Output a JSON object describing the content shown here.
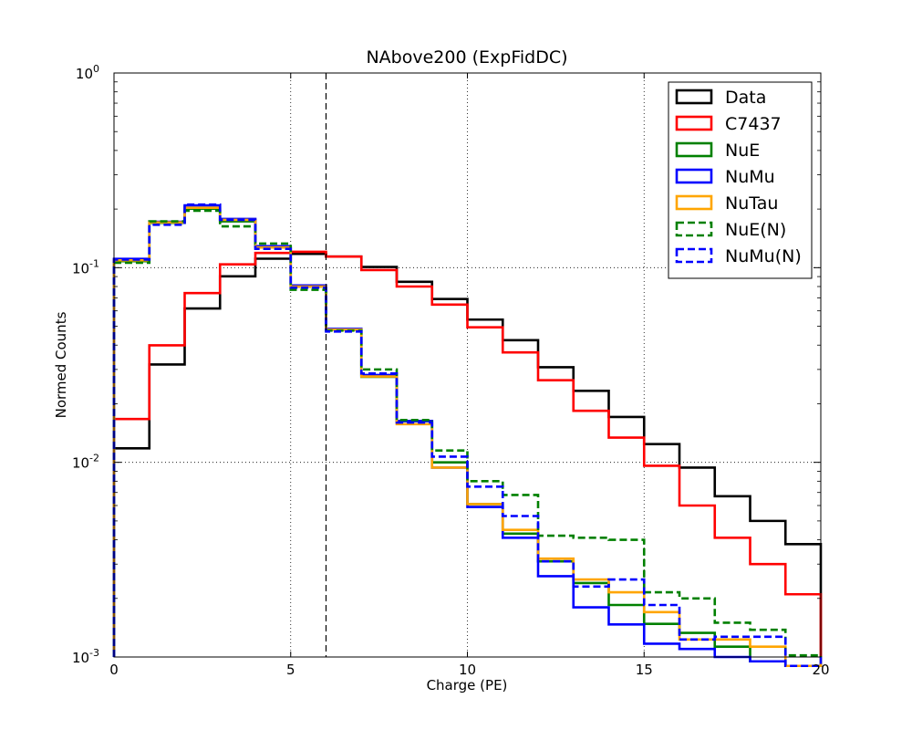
{
  "chart_data": {
    "type": "line",
    "title": "NAbove200 (ExpFidDC)",
    "xlabel": "Charge (PE)",
    "ylabel": "Normed Counts",
    "xlim": [
      0,
      20
    ],
    "ylim": [
      0.001,
      1
    ],
    "yscale": "log",
    "grid": true,
    "legend_position": "top-right",
    "x_ticks": [
      "0",
      "5",
      "10",
      "15",
      "20"
    ],
    "y_ticks": [
      {
        "base": "10",
        "exp": "0"
      },
      {
        "base": "10",
        "exp": "-1"
      },
      {
        "base": "10",
        "exp": "-2"
      },
      {
        "base": "10",
        "exp": "-3"
      }
    ],
    "cut_line_x": 6,
    "bin_edges": [
      0,
      1,
      2,
      3,
      4,
      5,
      6,
      7,
      8,
      9,
      10,
      11,
      12,
      13,
      14,
      15,
      16,
      17,
      18,
      19,
      20
    ],
    "series": [
      {
        "name": "Data",
        "color": "#000000",
        "dashed": false,
        "values": [
          0.0118,
          0.0318,
          0.0617,
          0.0903,
          0.1112,
          0.1178,
          0.114,
          0.1008,
          0.0846,
          0.069,
          0.0541,
          0.0424,
          0.0308,
          0.0233,
          0.0171,
          0.0124,
          0.0094,
          0.0067,
          0.005,
          0.0038
        ]
      },
      {
        "name": "C7437",
        "color": "#ff0000",
        "dashed": false,
        "values": [
          0.0167,
          0.0399,
          0.074,
          0.104,
          0.119,
          0.1206,
          0.114,
          0.0972,
          0.08,
          0.0646,
          0.0494,
          0.0367,
          0.0264,
          0.0184,
          0.0134,
          0.0096,
          0.006,
          0.0041,
          0.003,
          0.0021
        ]
      },
      {
        "name": "NuE",
        "color": "#008000",
        "dashed": false,
        "values": [
          0.108,
          0.17,
          0.201,
          0.173,
          0.127,
          0.08,
          0.048,
          0.0275,
          0.0163,
          0.01,
          0.0061,
          0.0043,
          0.0031,
          0.0024,
          0.00185,
          0.00148,
          0.00133,
          0.00113,
          0.00095,
          0.0009
        ]
      },
      {
        "name": "NuMu",
        "color": "#0000ff",
        "dashed": false,
        "values": [
          0.111,
          0.172,
          0.209,
          0.178,
          0.129,
          0.081,
          0.0485,
          0.0281,
          0.0163,
          0.0094,
          0.0059,
          0.0041,
          0.0026,
          0.0018,
          0.00147,
          0.00117,
          0.0011,
          0.001,
          0.00095,
          0.0009
        ]
      },
      {
        "name": "NuTau",
        "color": "#ffa500",
        "dashed": false,
        "values": [
          0.109,
          0.171,
          0.203,
          0.176,
          0.127,
          0.08,
          0.048,
          0.0276,
          0.0157,
          0.0094,
          0.0061,
          0.0045,
          0.0032,
          0.0025,
          0.00215,
          0.0017,
          0.00123,
          0.00123,
          0.00113,
          0.0009
        ]
      },
      {
        "name": "NuE(N)",
        "color": "#008000",
        "dashed": true,
        "values": [
          0.106,
          0.173,
          0.196,
          0.163,
          0.133,
          0.077,
          0.0475,
          0.03,
          0.0165,
          0.0115,
          0.008,
          0.0068,
          0.0042,
          0.0041,
          0.004,
          0.00215,
          0.002,
          0.0015,
          0.00138,
          0.00102
        ]
      },
      {
        "name": "NuMu(N)",
        "color": "#0000ff",
        "dashed": true,
        "values": [
          0.11,
          0.166,
          0.211,
          0.176,
          0.125,
          0.079,
          0.047,
          0.0286,
          0.016,
          0.0107,
          0.0075,
          0.0053,
          0.0031,
          0.0023,
          0.0025,
          0.00185,
          0.00123,
          0.00127,
          0.00127,
          0.0009
        ]
      }
    ]
  }
}
